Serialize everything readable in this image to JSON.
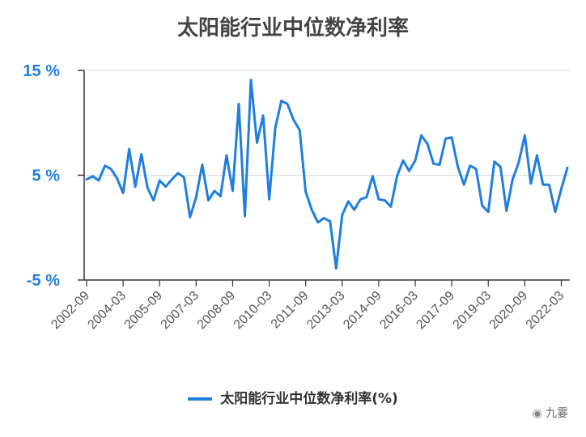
{
  "chart_data": {
    "type": "line",
    "title": "太阳能行业中位数净利率",
    "y_tick_labels": [
      "15 %",
      "5 %",
      "-5 %"
    ],
    "y_ticks": [
      15,
      5,
      -5
    ],
    "ylim": [
      -5,
      15
    ],
    "x_tick_labels": [
      "2002-09",
      "2004-03",
      "2005-09",
      "2007-03",
      "2008-09",
      "2010-03",
      "2011-09",
      "2013-03",
      "2014-09",
      "2016-03",
      "2017-09",
      "2019-03",
      "2020-09",
      "2022-03"
    ],
    "grid": true,
    "legend_position": "bottom",
    "series": [
      {
        "name": "太阳能行业中位数净利率(%)",
        "color": "#1f7ee0",
        "values": [
          4.6,
          4.9,
          4.5,
          5.9,
          5.6,
          4.7,
          3.3,
          7.5,
          3.9,
          7.0,
          3.8,
          2.6,
          4.5,
          3.9,
          4.6,
          5.2,
          4.8,
          1.0,
          2.9,
          6.0,
          2.6,
          3.5,
          3.0,
          6.9,
          3.5,
          11.8,
          1.1,
          14.1,
          8.1,
          10.7,
          2.7,
          9.5,
          12.1,
          11.8,
          10.3,
          9.3,
          3.4,
          1.7,
          0.5,
          0.9,
          0.6,
          -3.9,
          1.2,
          2.5,
          1.7,
          2.7,
          2.9,
          4.9,
          2.7,
          2.6,
          2.0,
          4.9,
          6.4,
          5.4,
          6.4,
          8.8,
          8.0,
          6.1,
          6.0,
          8.5,
          8.6,
          5.8,
          4.1,
          5.9,
          5.6,
          2.1,
          1.5,
          6.3,
          5.8,
          1.6,
          4.6,
          6.2,
          8.8,
          4.2,
          6.9,
          4.1,
          4.1,
          1.5,
          3.7,
          5.7
        ]
      }
    ]
  },
  "legend": {
    "label": "太阳能行业中位数净利率(%)"
  },
  "watermark": {
    "text": "九霎",
    "icon": "wechat-icon"
  }
}
